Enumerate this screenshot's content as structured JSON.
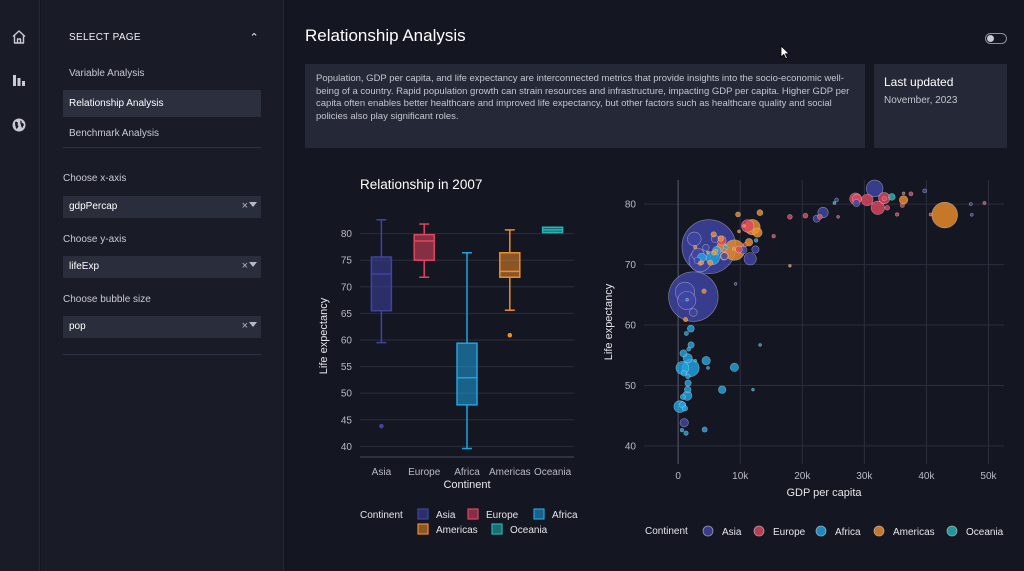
{
  "rail": {
    "icons": [
      "home-icon",
      "bar-chart-icon",
      "globe-icon"
    ]
  },
  "sidebar": {
    "section_title": "SELECT PAGE",
    "pages": [
      {
        "label": "Variable Analysis",
        "active": false
      },
      {
        "label": "Relationship Analysis",
        "active": true
      },
      {
        "label": "Benchmark Analysis",
        "active": false
      }
    ],
    "x_label": "Choose x-axis",
    "x_value": "gdpPercap",
    "y_label": "Choose y-axis",
    "y_value": "lifeExp",
    "size_label": "Choose bubble size",
    "size_value": "pop",
    "clear_glyph": "×"
  },
  "page": {
    "title": "Relationship Analysis"
  },
  "description": "Population, GDP per capita, and life expectancy are interconnected metrics that provide insights into the socio-economic well-being of a country. Rapid population growth can strain resources and infrastructure, impacting GDP per capita. Higher GDP per capita often enables better healthcare and improved life expectancy, but other factors such as healthcare quality and social policies also play significant roles.",
  "updated": {
    "heading": "Last updated",
    "value": "November, 2023"
  },
  "colors": {
    "Asia": "#3f44a3",
    "Europe": "#e0455e",
    "Africa": "#1fa3e0",
    "Americas": "#ed8d2a",
    "Oceania": "#22b5b5"
  },
  "chart_data": [
    {
      "type": "box",
      "title": "Relationship in 2007",
      "xlabel": "Continent",
      "ylabel": "Life expectancy",
      "categories": [
        "Asia",
        "Europe",
        "Africa",
        "Americas",
        "Oceania"
      ],
      "yticks": [
        40,
        45,
        50,
        55,
        60,
        65,
        70,
        75,
        80
      ],
      "ylim": [
        38,
        83.5
      ],
      "legend_title": "Continent",
      "boxes": [
        {
          "name": "Asia",
          "min": 59.5,
          "q1": 65.5,
          "median": 72.4,
          "q3": 75.6,
          "max": 82.6,
          "outliers": [
            43.8
          ]
        },
        {
          "name": "Europe",
          "min": 71.8,
          "q1": 75.0,
          "median": 78.6,
          "q3": 79.8,
          "max": 81.8,
          "outliers": []
        },
        {
          "name": "Africa",
          "min": 39.6,
          "q1": 47.8,
          "median": 52.9,
          "q3": 59.4,
          "max": 76.4,
          "outliers": []
        },
        {
          "name": "Americas",
          "min": 65.6,
          "q1": 71.8,
          "median": 72.9,
          "q3": 76.4,
          "max": 80.7,
          "outliers": [
            60.9
          ]
        },
        {
          "name": "Oceania",
          "min": 80.2,
          "q1": 80.2,
          "median": 80.7,
          "q3": 81.2,
          "max": 81.2,
          "outliers": []
        }
      ]
    },
    {
      "type": "scatter",
      "xlabel": "GDP per capita",
      "ylabel": "Life expectancy",
      "xticks": [
        0,
        10000,
        20000,
        30000,
        40000,
        50000
      ],
      "xtick_labels": [
        "0",
        "10k",
        "20k",
        "30k",
        "40k",
        "50k"
      ],
      "yticks": [
        40,
        50,
        60,
        70,
        80
      ],
      "xlim": [
        -5500,
        52500
      ],
      "ylim": [
        37,
        84
      ],
      "legend_title": "Continent",
      "series": [
        {
          "name": "Asia",
          "points": [
            [
              4959,
              72.96,
              1318
            ],
            [
              2452,
              64.7,
              1110
            ],
            [
              3541,
              70.65,
              223
            ],
            [
              1091,
              65.48,
              170
            ],
            [
              1391,
              64.06,
              150
            ],
            [
              31656,
              82.6,
              127
            ],
            [
              2605,
              74.25,
              85
            ],
            [
              3190,
              71.69,
              70
            ],
            [
              11606,
              70.96,
              69
            ],
            [
              974,
              43.83,
              32
            ],
            [
              10461,
              72.4,
              27
            ],
            [
              23348,
              78.62,
              49
            ],
            [
              47307,
              78.24,
              4
            ],
            [
              5937,
              74.24,
              24
            ],
            [
              7458,
              71.4,
              23
            ],
            [
              28718,
              80.2,
              23
            ],
            [
              2442,
              62.07,
              28
            ],
            [
              4471,
              72.8,
              20
            ],
            [
              3095,
              70.7,
              19
            ],
            [
              22316,
              77.6,
              23
            ],
            [
              47143,
              80.0,
              4.5
            ],
            [
              39725,
              82.2,
              7
            ],
            [
              25523,
              80.7,
              6.4
            ],
            [
              12452,
              72.5,
              24
            ],
            [
              9254,
              66.8,
              2.5
            ]
          ]
        },
        {
          "name": "Europe",
          "points": [
            [
              32170,
              79.4,
              82
            ],
            [
              33203,
              81.0,
              58
            ],
            [
              30470,
              80.7,
              61
            ],
            [
              28570,
              80.9,
              60
            ],
            [
              11200,
              76.4,
              71
            ],
            [
              7008,
              74.0,
              38
            ],
            [
              28821,
              80.9,
              40
            ],
            [
              33693,
              79.4,
              10
            ],
            [
              36126,
              79.8,
              8
            ],
            [
              35278,
              78.3,
              5.5
            ],
            [
              33207,
              80.9,
              9
            ],
            [
              37506,
              81.7,
              7.5
            ],
            [
              9786,
              72.5,
              21
            ],
            [
              22833,
              77.9,
              10.7
            ],
            [
              40676,
              78.3,
              4.1
            ],
            [
              49357,
              80.2,
              4.6
            ],
            [
              18009,
              77.9,
              10.2
            ],
            [
              10808,
              73.3,
              7.3
            ],
            [
              15390,
              74.7,
              5.4
            ],
            [
              25768,
              77.9,
              2
            ],
            [
              20510,
              78.1,
              10.6
            ],
            [
              7446,
              72.4,
              4.6
            ],
            [
              36319,
              81.8,
              0.3
            ]
          ]
        },
        {
          "name": "Africa",
          "points": [
            [
              1993,
              52.9,
              135
            ],
            [
              691,
              52.9,
              76
            ],
            [
              7092,
              49.3,
              26
            ],
            [
              12057,
              49.3,
              1.6
            ],
            [
              4514,
              54.1,
              32
            ],
            [
              1463,
              48.3,
              40
            ],
            [
              1544,
              54.5,
              38
            ],
            [
              277,
              46.5,
              64
            ],
            [
              6223,
              72.3,
              33
            ],
            [
              9065,
              53.0,
              32
            ],
            [
              5581,
              71.1,
              80
            ],
            [
              2042,
              59.4,
              22
            ],
            [
              12570,
              74.0,
              6
            ],
            [
              4270,
              42.7,
              12
            ],
            [
              1107,
              46.2,
              13
            ],
            [
              863,
              55.3,
              23
            ],
            [
              1598,
              50.4,
              18
            ],
            [
              1544,
              49.3,
              20
            ],
            [
              759,
              48.1,
              12
            ],
            [
              926,
              52.0,
              14
            ],
            [
              2082,
              56.7,
              18
            ],
            [
              1271,
              42.1,
              9
            ],
            [
              619,
              42.6,
              6
            ],
            [
              706,
              46.8,
              19
            ],
            [
              1569,
              51.5,
              10
            ],
            [
              1327,
              58.6,
              8
            ],
            [
              13206,
              56.7,
              1.5
            ],
            [
              3820,
              71.2,
              34
            ],
            [
              7670,
              72.8,
              10
            ],
            [
              1441,
              64.2,
              2
            ],
            [
              4811,
              52.9,
              4
            ],
            [
              2749,
              54.1,
              2.5
            ],
            [
              1704,
              56.0,
              7
            ]
          ]
        },
        {
          "name": "Americas",
          "points": [
            [
              42951,
              78.2,
              301
            ],
            [
              9066,
              72.4,
              190
            ],
            [
              11977,
              76.2,
              108
            ],
            [
              7007,
              72.9,
              44
            ],
            [
              12779,
              75.3,
              40
            ],
            [
              36319,
              80.7,
              33
            ],
            [
              7409,
              71.4,
              29
            ],
            [
              11416,
              73.7,
              26
            ],
            [
              13172,
              78.6,
              16
            ],
            [
              5728,
              75.0,
              13
            ],
            [
              6873,
              74.3,
              14
            ],
            [
              5186,
              70.3,
              12.6
            ],
            [
              1202,
              60.9,
              8.5
            ],
            [
              9645,
              78.3,
              11.4
            ],
            [
              6026,
              72.2,
              9.3
            ],
            [
              4173,
              65.6,
              9.1
            ],
            [
              3548,
              70.2,
              7.5
            ],
            [
              3820,
              70.3,
              7
            ],
            [
              5728,
              71.9,
              6.9
            ],
            [
              9809,
              75.5,
              4.1
            ],
            [
              4797,
              72.0,
              3.3
            ],
            [
              10611,
              76.4,
              3.4
            ],
            [
              2749,
              72.9,
              5.2
            ],
            [
              8948,
              72.6,
              2.9
            ],
            [
              18008,
              69.8,
              1.1
            ]
          ]
        },
        {
          "name": "Oceania",
          "points": [
            [
              34435,
              81.2,
              20.4
            ],
            [
              25185,
              80.2,
              4.1
            ]
          ]
        }
      ]
    }
  ]
}
